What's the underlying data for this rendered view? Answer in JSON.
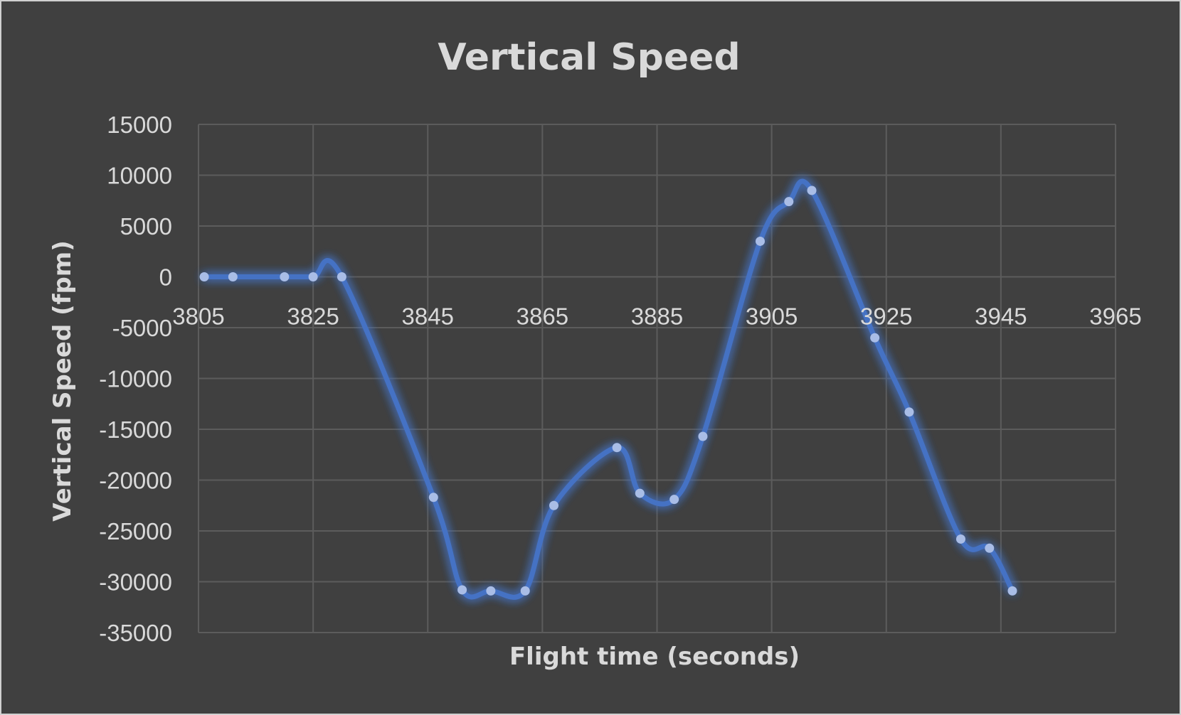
{
  "chart_data": {
    "type": "scatter",
    "title": "Vertical Speed",
    "xlabel": "Flight time (seconds)",
    "ylabel": "Vertical Speed (fpm)",
    "xlim": [
      3805,
      3965
    ],
    "ylim": [
      -35000,
      15000
    ],
    "x_ticks": [
      3805,
      3825,
      3845,
      3865,
      3885,
      3905,
      3925,
      3945,
      3965
    ],
    "y_ticks": [
      15000,
      10000,
      5000,
      0,
      -5000,
      -10000,
      -15000,
      -20000,
      -25000,
      -30000,
      -35000
    ],
    "grid": true,
    "legend": "none",
    "smooth_line": true,
    "line_color": "#4472c4",
    "marker_color": "#a9bde6",
    "series": [
      {
        "x": [
          3806,
          3811,
          3820,
          3825,
          3830,
          3846,
          3851,
          3856,
          3862,
          3867,
          3878,
          3882,
          3888,
          3893,
          3903,
          3908,
          3912,
          3923,
          3929,
          3938,
          3943,
          3947
        ],
        "y": [
          0,
          0,
          0,
          0,
          0,
          -21700,
          -30800,
          -30900,
          -30900,
          -22500,
          -16800,
          -21300,
          -21900,
          -15700,
          3500,
          7400,
          8500,
          -6000,
          -13300,
          -25800,
          -26700,
          -30900
        ]
      }
    ]
  }
}
